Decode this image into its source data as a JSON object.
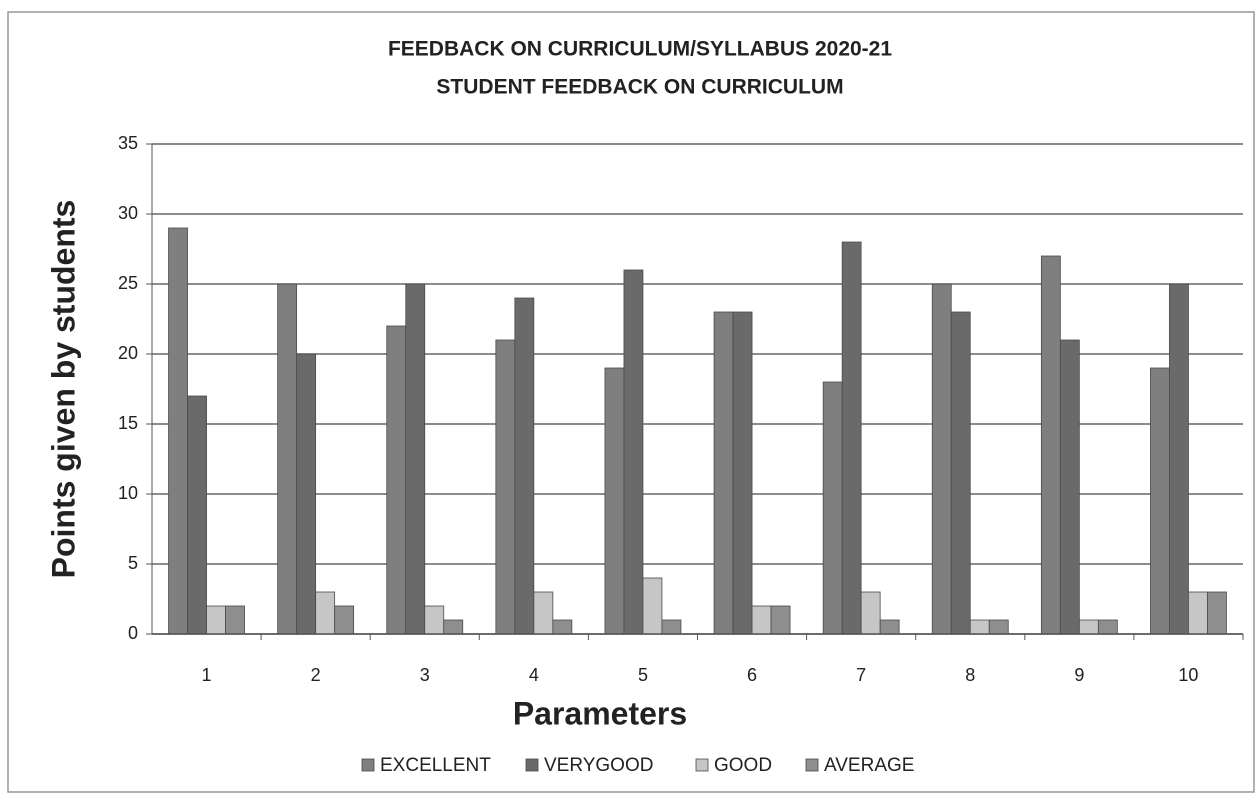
{
  "chart_data": {
    "type": "bar",
    "title": "FEEDBACK ON CURRICULUM/SYLLABUS 2020-21",
    "subtitle": "STUDENT FEEDBACK ON CURRICULUM",
    "x_label": "Parameters",
    "y_label": "Points given by students",
    "categories": [
      "1",
      "2",
      "3",
      "4",
      "5",
      "6",
      "7",
      "8",
      "9",
      "10"
    ],
    "series": [
      {
        "name": "EXCELLENT",
        "color": "#7f7f7f",
        "values": [
          29,
          25,
          22,
          21,
          19,
          23,
          18,
          25,
          27,
          19
        ]
      },
      {
        "name": "VERYGOOD",
        "color": "#6a6a6a",
        "values": [
          17,
          20,
          25,
          24,
          26,
          23,
          28,
          23,
          21,
          25
        ]
      },
      {
        "name": "GOOD",
        "color": "#c6c6c6",
        "values": [
          2,
          3,
          2,
          3,
          4,
          2,
          3,
          1,
          1,
          3
        ]
      },
      {
        "name": "AVERAGE",
        "color": "#8e8e8e",
        "values": [
          2,
          2,
          1,
          1,
          1,
          2,
          1,
          1,
          1,
          3
        ]
      }
    ],
    "ylim": [
      0,
      35
    ],
    "yticks": [
      0,
      5,
      10,
      15,
      20,
      25,
      30,
      35
    ],
    "grid": true,
    "legend": "bottom"
  }
}
